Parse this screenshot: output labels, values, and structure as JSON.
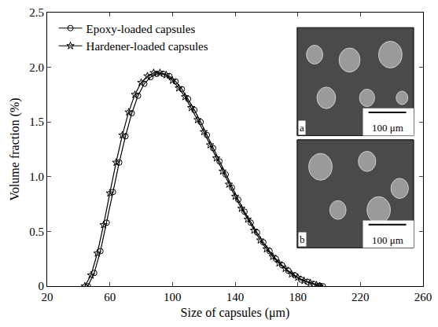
{
  "chart_data": {
    "type": "line",
    "x_label": "Size of capsules (μm)",
    "y_label": "Volume fraction (%)",
    "xlim": [
      20,
      260
    ],
    "xticks": [
      20,
      60,
      100,
      140,
      180,
      220,
      260
    ],
    "ylim": [
      0,
      2.5
    ],
    "yticks": [
      0,
      0.5,
      {
        "value": 1.0,
        "label": "1.0"
      },
      1.5,
      {
        "value": 2.0,
        "label": "2.0"
      },
      2.5
    ],
    "grid": false,
    "legend": "upper left",
    "annotations": [
      "a",
      "100 μm",
      "b",
      "100 μm"
    ],
    "series": [
      {
        "name": "Epoxy-loaded capsules",
        "color": "#000000",
        "marker": "circle",
        "line_style": "solid",
        "x": [
          46,
          50,
          54,
          58,
          62,
          66,
          70,
          74,
          78,
          82,
          86,
          90,
          94,
          98,
          102,
          106,
          110,
          114,
          118,
          122,
          126,
          130,
          134,
          138,
          142,
          146,
          150,
          154,
          158,
          162,
          166,
          170,
          174,
          178,
          182,
          186,
          190,
          194,
          196
        ],
        "values": [
          0,
          0.12,
          0.32,
          0.58,
          0.86,
          1.13,
          1.37,
          1.58,
          1.74,
          1.85,
          1.91,
          1.94,
          1.94,
          1.92,
          1.87,
          1.8,
          1.71,
          1.61,
          1.5,
          1.38,
          1.26,
          1.14,
          1.02,
          0.9,
          0.79,
          0.68,
          0.58,
          0.49,
          0.4,
          0.32,
          0.25,
          0.19,
          0.14,
          0.1,
          0.06,
          0.04,
          0.02,
          0.005,
          0
        ]
      },
      {
        "name": "Hardener-loaded capsules",
        "color": "#000000",
        "marker": "star",
        "line_style": "solid",
        "x": [
          44,
          48,
          52,
          56,
          60,
          64,
          68,
          72,
          76,
          80,
          84,
          88,
          92,
          96,
          100,
          104,
          108,
          112,
          116,
          120,
          124,
          128,
          132,
          136,
          140,
          144,
          148,
          152,
          156,
          160,
          164,
          168,
          172,
          176,
          180,
          184,
          188,
          192,
          194
        ],
        "values": [
          0,
          0.1,
          0.3,
          0.56,
          0.85,
          1.13,
          1.38,
          1.59,
          1.75,
          1.86,
          1.92,
          1.95,
          1.95,
          1.93,
          1.88,
          1.81,
          1.73,
          1.63,
          1.52,
          1.41,
          1.29,
          1.17,
          1.05,
          0.93,
          0.82,
          0.71,
          0.61,
          0.51,
          0.42,
          0.34,
          0.27,
          0.21,
          0.16,
          0.11,
          0.08,
          0.05,
          0.03,
          0.01,
          0
        ]
      }
    ]
  }
}
